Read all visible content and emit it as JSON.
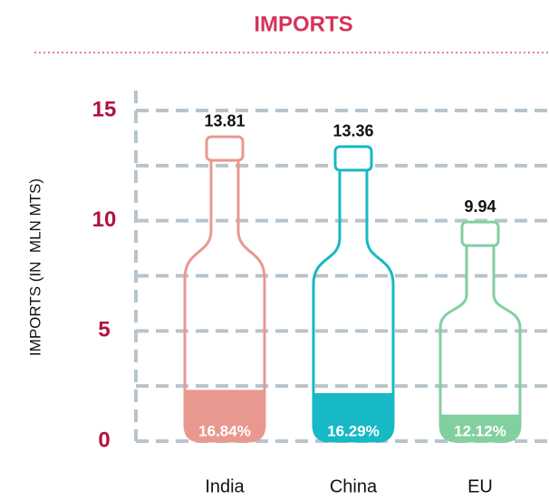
{
  "chart_data": {
    "type": "bottle",
    "title": "IMPORTS",
    "y_label": "IMPORTS (IN  MLN MTS)",
    "categories": [
      "India",
      "China",
      "EU"
    ],
    "values": [
      13.81,
      13.36,
      9.94
    ],
    "colors": [
      "#e99890",
      "#16b9c5",
      "#82cfa0"
    ],
    "fill_values": [
      16.84,
      16.29,
      12.12
    ],
    "fill_labels": [
      "16.84%",
      "16.29%",
      "12.12%"
    ],
    "ylim": [
      0,
      15
    ],
    "yticks": [
      0,
      5,
      10,
      15
    ],
    "minor_yticks": [
      2.5,
      7.5,
      12.5
    ],
    "grid": true
  }
}
